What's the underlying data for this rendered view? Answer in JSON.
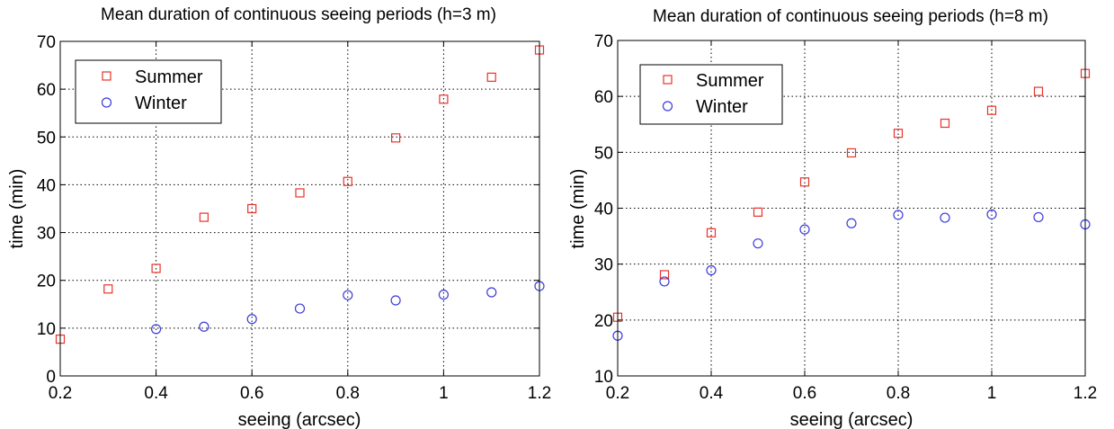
{
  "chart_data": [
    {
      "type": "scatter",
      "title": "Mean duration of continuous seeing periods (h=3 m)",
      "xlabel": "seeing (arcsec)",
      "ylabel": "time (min)",
      "xlim": [
        0.2,
        1.2
      ],
      "ylim": [
        0,
        70
      ],
      "xticks": [
        0.2,
        0.4,
        0.6,
        0.8,
        1,
        1.2
      ],
      "xtick_labels": [
        "0.2",
        "0.4",
        "0.6",
        "0.8",
        "1",
        "1.2"
      ],
      "yticks": [
        0,
        10,
        20,
        30,
        40,
        50,
        60,
        70
      ],
      "ytick_labels": [
        "0",
        "10",
        "20",
        "30",
        "40",
        "50",
        "60",
        "70"
      ],
      "grid": true,
      "legend_position": "top-left",
      "series": [
        {
          "name": "Summer",
          "marker": "square",
          "color": "#e8332a",
          "x": [
            0.2,
            0.3,
            0.4,
            0.5,
            0.6,
            0.7,
            0.8,
            0.9,
            1.0,
            1.1,
            1.2
          ],
          "y": [
            7.7,
            18.2,
            22.5,
            33.2,
            35.0,
            38.3,
            40.7,
            49.8,
            57.9,
            62.5,
            68.2
          ]
        },
        {
          "name": "Winter",
          "marker": "circle",
          "color": "#3b3bdc",
          "x": [
            0.4,
            0.5,
            0.6,
            0.7,
            0.8,
            0.9,
            1.0,
            1.1,
            1.2
          ],
          "y": [
            9.8,
            10.3,
            11.9,
            14.1,
            16.9,
            15.8,
            17.0,
            17.5,
            18.8
          ]
        }
      ]
    },
    {
      "type": "scatter",
      "title": "Mean duration of continuous seeing periods (h=8 m)",
      "xlabel": "seeing (arcsec)",
      "ylabel": "time (min)",
      "xlim": [
        0.2,
        1.2
      ],
      "ylim": [
        10,
        70
      ],
      "xticks": [
        0.2,
        0.4,
        0.6,
        0.8,
        1,
        1.2
      ],
      "xtick_labels": [
        "0.2",
        "0.4",
        "0.6",
        "0.8",
        "1",
        "1.2"
      ],
      "yticks": [
        10,
        20,
        30,
        40,
        50,
        60,
        70
      ],
      "ytick_labels": [
        "10",
        "20",
        "30",
        "40",
        "50",
        "60",
        "70"
      ],
      "grid": true,
      "legend_position": "top-left",
      "series": [
        {
          "name": "Summer",
          "marker": "square",
          "color": "#e8332a",
          "x": [
            0.2,
            0.3,
            0.4,
            0.5,
            0.6,
            0.7,
            0.8,
            0.9,
            1.0,
            1.1,
            1.2
          ],
          "y": [
            20.5,
            28.1,
            35.6,
            39.3,
            44.7,
            49.9,
            53.4,
            55.2,
            57.5,
            60.9,
            64.1
          ]
        },
        {
          "name": "Winter",
          "marker": "circle",
          "color": "#3b3bdc",
          "x": [
            0.2,
            0.3,
            0.4,
            0.5,
            0.6,
            0.7,
            0.8,
            0.9,
            1.0,
            1.1,
            1.2
          ],
          "y": [
            17.2,
            26.9,
            28.9,
            33.7,
            36.2,
            37.3,
            38.8,
            38.3,
            38.9,
            38.4,
            37.1
          ]
        }
      ]
    }
  ]
}
